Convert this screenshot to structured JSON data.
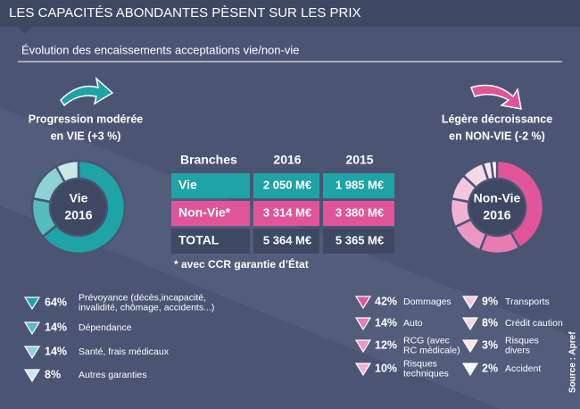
{
  "title": "LES CAPACITÉS ABONDANTES PÈSENT SUR LES PRIX",
  "subtitle": "Évolution des encaissements acceptations vie/non-vie",
  "vie": {
    "heading": [
      "Progression modérée",
      "en VIE (+3 %)"
    ],
    "center": [
      "Vie",
      "2016"
    ],
    "segments": [
      {
        "label": [
          "Prévoyance (décès,incapacité,",
          "invalidité, chômage, accidents...)"
        ],
        "value": 64,
        "value_label": "64%",
        "color": "#1ea3a6"
      },
      {
        "label": [
          "Dépendance"
        ],
        "value": 14,
        "value_label": "14%",
        "color": "#55bcbf"
      },
      {
        "label": [
          "Santé, frais médicaux"
        ],
        "value": 14,
        "value_label": "14%",
        "color": "#8fd2d3"
      },
      {
        "label": [
          "Autres garanties"
        ],
        "value": 8,
        "value_label": "8%",
        "color": "#c9e9e9"
      }
    ]
  },
  "non_vie": {
    "heading": [
      "Légère décroissance",
      "en NON-VIE (-2 %)"
    ],
    "center": [
      "Non-Vie",
      "2016"
    ],
    "segments": [
      {
        "label": [
          "Dommages"
        ],
        "value": 42,
        "value_label": "42%",
        "color": "#e0559a"
      },
      {
        "label": [
          "Auto"
        ],
        "value": 14,
        "value_label": "14%",
        "color": "#e77bb2"
      },
      {
        "label": [
          "RCG (avec",
          "RC médicale)"
        ],
        "value": 12,
        "value_label": "12%",
        "color": "#ec96c3"
      },
      {
        "label": [
          "Risques",
          "techniques"
        ],
        "value": 10,
        "value_label": "10%",
        "color": "#f0b2d3"
      },
      {
        "label": [
          "Transports"
        ],
        "value": 9,
        "value_label": "9%",
        "color": "#f3c8df"
      },
      {
        "label": [
          "Crédit caution"
        ],
        "value": 8,
        "value_label": "8%",
        "color": "#f6d8e9"
      },
      {
        "label": [
          "Risques",
          "divers"
        ],
        "value": 3,
        "value_label": "3%",
        "color": "#f9e7f0"
      },
      {
        "label": [
          "Accident"
        ],
        "value": 2,
        "value_label": "2%",
        "color": "#ffffff"
      }
    ]
  },
  "table": {
    "header": [
      "Branches",
      "2016",
      "2015"
    ],
    "rows": [
      [
        "Vie",
        "2 050 M€",
        "1 985 M€"
      ],
      [
        "Non-Vie*",
        "3 314 M€",
        "3 380 M€"
      ],
      [
        "TOTAL",
        "5 364 M€",
        "5 365 M€"
      ]
    ]
  },
  "note": "* avec CCR garantie d’État",
  "source": "Source : Apref"
}
